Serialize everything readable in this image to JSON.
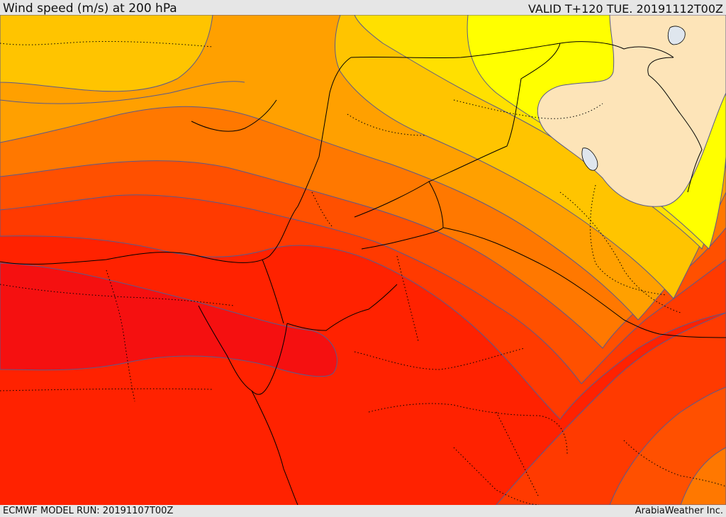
{
  "header": {
    "title": "Wind speed (m/s) at 200 hPa",
    "valid_time": "VALID T+120 TUE. 20191112T00Z"
  },
  "footer": {
    "model_run": "ECMWF MODEL RUN: 20191107T00Z",
    "brand": "ArabiaWeather Inc."
  },
  "colors": {
    "band_1": "#fde4b8",
    "band_2": "#ffff00",
    "band_3": "#ffe000",
    "band_4": "#ffc400",
    "band_5": "#ffa000",
    "band_6": "#ff7800",
    "band_7": "#ff5000",
    "band_8": "#ff3a00",
    "band_9": "#ff2200",
    "band_10": "#f51010",
    "contour": "#5a5a8c",
    "border": "#000000",
    "water": "#dfe6ee"
  }
}
